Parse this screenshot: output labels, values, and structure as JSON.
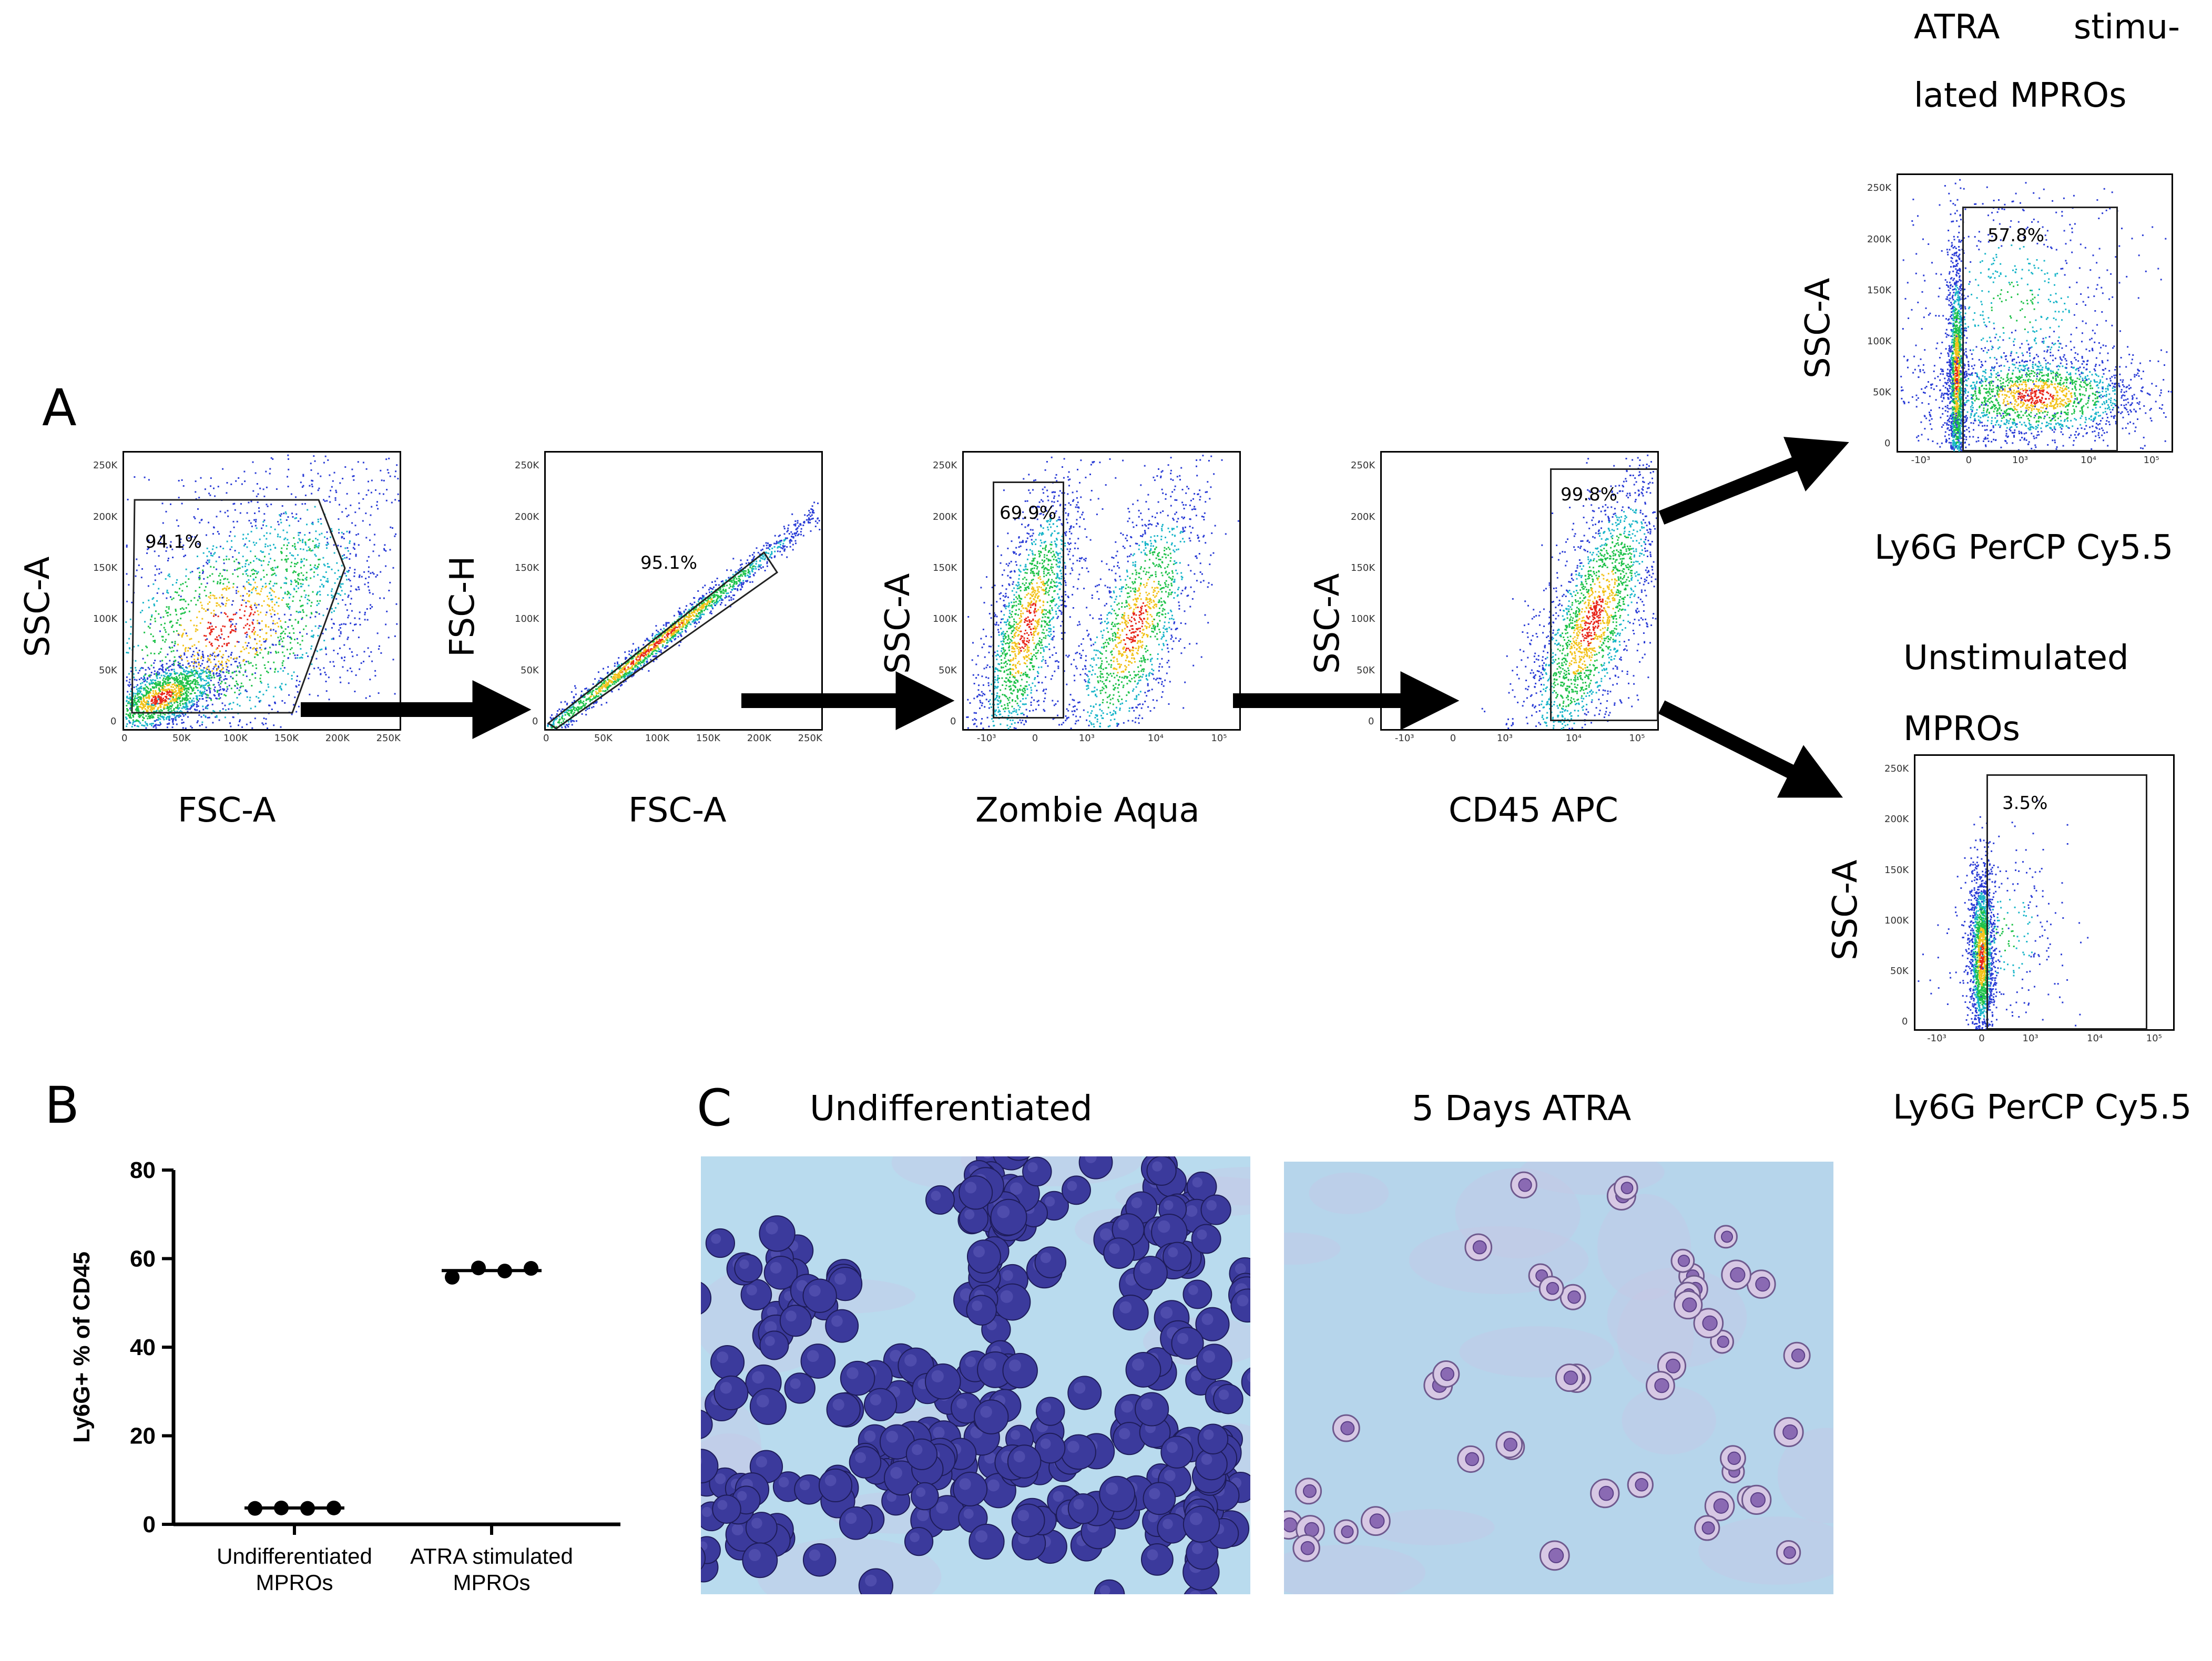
{
  "panels": {
    "a": "A",
    "b": "B",
    "c": "C"
  },
  "flow": {
    "plot1": {
      "x_label": "FSC-A",
      "y_label": "SSC-A",
      "gate_pct": "94.1%"
    },
    "plot2": {
      "x_label": "FSC-A",
      "y_label": "FSC-H",
      "gate_pct": "95.1%"
    },
    "plot3": {
      "x_label": "Zombie Aqua",
      "y_label": "SSC-A",
      "gate_pct": "69.9%"
    },
    "plot4": {
      "x_label": "CD45 APC",
      "y_label": "SSC-A",
      "gate_pct": "99.8%"
    },
    "plot5": {
      "title_line1": "ATRA stimu-",
      "title_line2": "lated MPROs",
      "x_label": "Ly6G PerCP Cy5.5",
      "y_label": "SSC-A",
      "gate_pct": "57.8%"
    },
    "plot6": {
      "title_line1": "Unstimulated",
      "title_line2": "MPROs",
      "x_label": "Ly6G PerCP Cy5.5",
      "y_label": "SSC-A",
      "gate_pct": "3.5%"
    },
    "linear_ticks": [
      "0",
      "50K",
      "100K",
      "150K",
      "200K",
      "250K"
    ],
    "log_ticks": [
      "-10³",
      "0",
      "10³",
      "10⁴",
      "10⁵"
    ]
  },
  "chart_data": {
    "type": "scatter",
    "title": "",
    "xlabel": "",
    "ylabel": "Ly6G+ % of CD45",
    "ylim": [
      0,
      80
    ],
    "yticks": [
      "0",
      "20",
      "40",
      "60",
      "80"
    ],
    "categories": [
      "Undifferentiated MPROs",
      "ATRA stimulated MPROs"
    ],
    "category_lines": [
      [
        "Undifferentiated",
        "MPROs"
      ],
      [
        "ATRA stimulated",
        "MPROs"
      ]
    ],
    "series": [
      {
        "name": "Undifferentiated MPROs",
        "values": [
          3.6,
          3.7,
          3.6,
          3.7
        ],
        "mean": 3.7
      },
      {
        "name": "ATRA stimulated MPROs",
        "values": [
          55.8,
          57.9,
          57.2,
          57.8
        ],
        "mean": 57.3
      }
    ]
  },
  "micrographs": {
    "left_label": "Undifferentiated",
    "right_label": "5 Days ATRA"
  },
  "colors": {
    "density_low": "#2a3cd6",
    "density_mid": "#1fc24a",
    "density_high": "#e8261a",
    "stain_background": "#b9dbee",
    "stain_cell": "#3b3a9c",
    "stain_cell_light": "#8a6ab3"
  }
}
